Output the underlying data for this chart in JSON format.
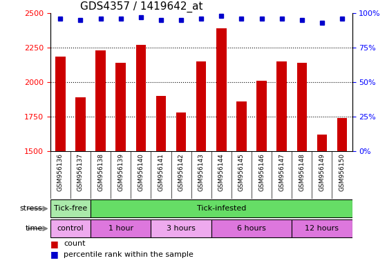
{
  "title": "GDS4357 / 1419642_at",
  "samples": [
    "GSM956136",
    "GSM956137",
    "GSM956138",
    "GSM956139",
    "GSM956140",
    "GSM956141",
    "GSM956142",
    "GSM956143",
    "GSM956144",
    "GSM956145",
    "GSM956146",
    "GSM956147",
    "GSM956148",
    "GSM956149",
    "GSM956150"
  ],
  "counts": [
    2185,
    1890,
    2230,
    2140,
    2270,
    1900,
    1780,
    2150,
    2390,
    1860,
    2010,
    2150,
    2140,
    1620,
    1740
  ],
  "percentiles": [
    96,
    95,
    96,
    96,
    97,
    95,
    95,
    96,
    98,
    96,
    96,
    96,
    95,
    93,
    96
  ],
  "ylim_left": [
    1500,
    2500
  ],
  "ylim_right": [
    0,
    100
  ],
  "yticks_left": [
    1500,
    1750,
    2000,
    2250,
    2500
  ],
  "yticks_right": [
    0,
    25,
    50,
    75,
    100
  ],
  "bar_color": "#cc0000",
  "dot_color": "#0000cc",
  "title_fontsize": 11,
  "tick_fontsize": 8,
  "label_fontsize": 8,
  "stress_groups": [
    {
      "label": "Tick-free",
      "start": 0,
      "end": 2,
      "color": "#aaeaaa"
    },
    {
      "label": "Tick-infested",
      "start": 2,
      "end": 15,
      "color": "#66dd66"
    }
  ],
  "time_groups": [
    {
      "label": "control",
      "start": 0,
      "end": 2,
      "color": "#eeaaee"
    },
    {
      "label": "1 hour",
      "start": 2,
      "end": 5,
      "color": "#dd77dd"
    },
    {
      "label": "3 hours",
      "start": 5,
      "end": 8,
      "color": "#eeaaee"
    },
    {
      "label": "6 hours",
      "start": 8,
      "end": 12,
      "color": "#dd77dd"
    },
    {
      "label": "12 hours",
      "start": 12,
      "end": 15,
      "color": "#dd77dd"
    }
  ],
  "xticklabel_bg": "#d0d0d0",
  "legend_count_color": "#cc0000",
  "legend_pct_color": "#0000cc"
}
